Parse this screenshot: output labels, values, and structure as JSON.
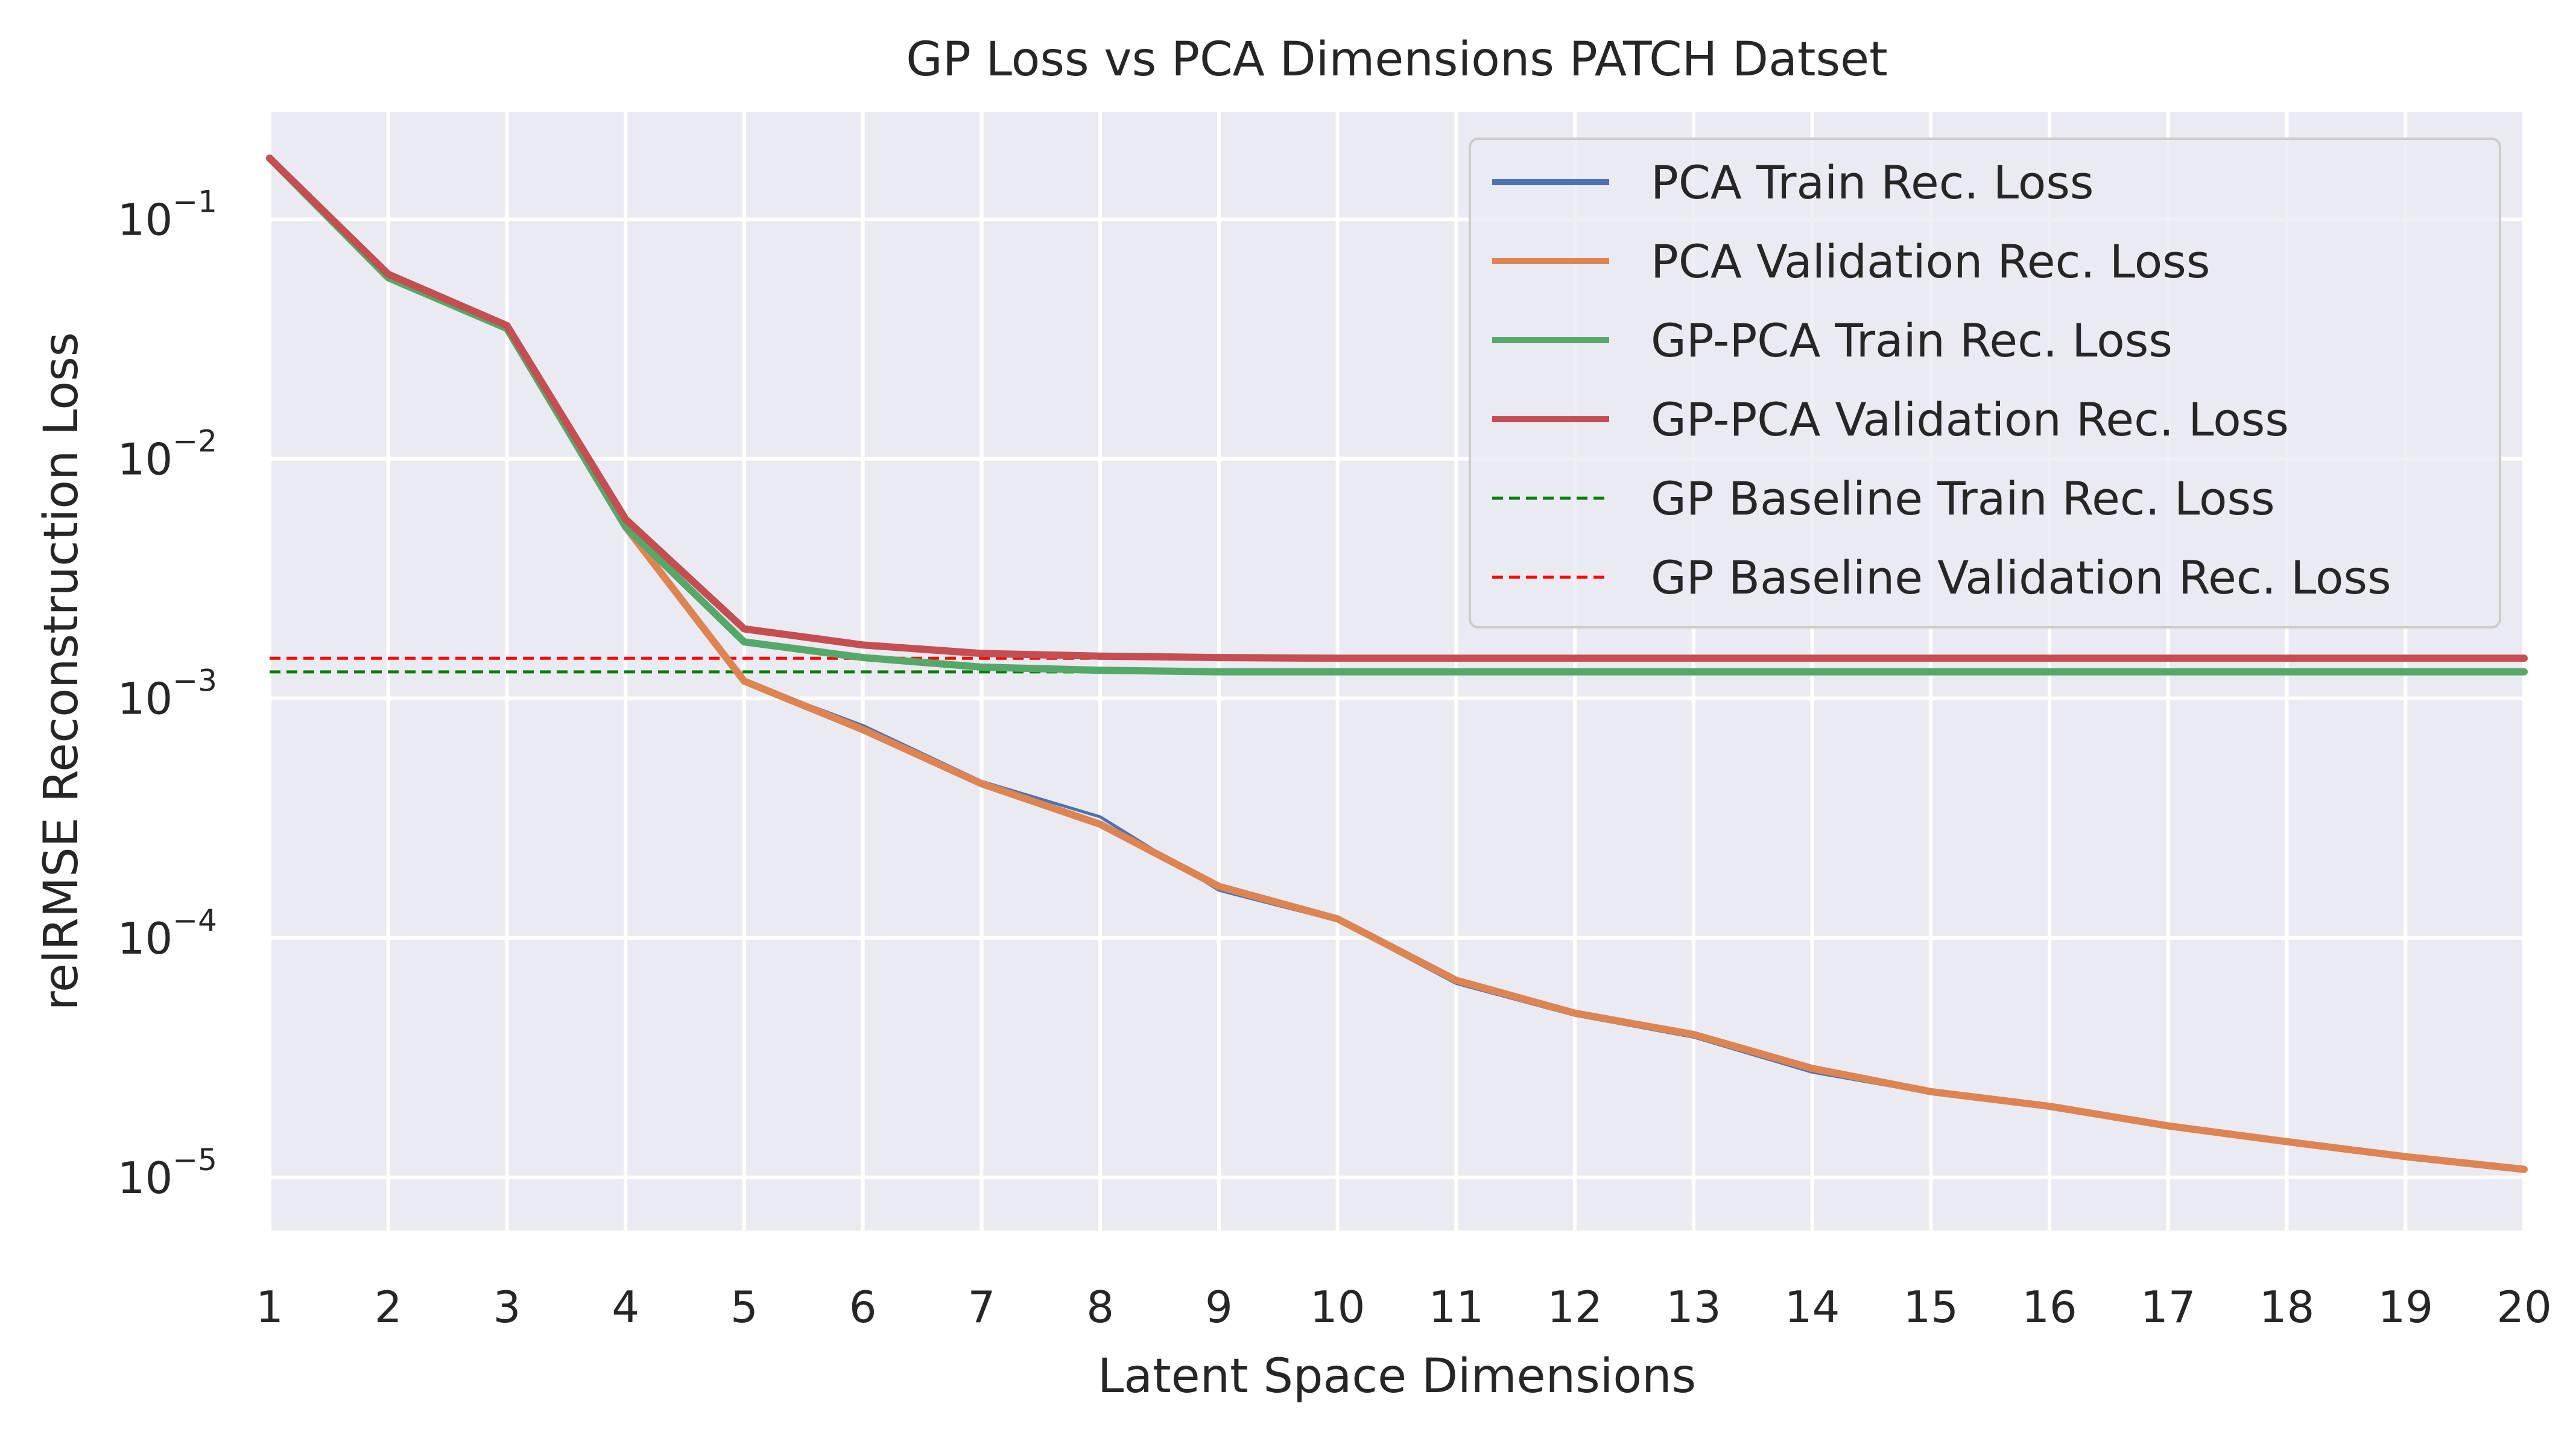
{
  "chart_data": {
    "type": "line",
    "title": "GP Loss vs PCA Dimensions PATCH Datset",
    "xlabel": "Latent Space Dimensions",
    "ylabel": "relRMSE Reconstruction Loss",
    "yscale": "log",
    "xlim": [
      1,
      20
    ],
    "ylim": [
      6e-06,
      0.28
    ],
    "grid": true,
    "legend_position": "top-right",
    "x_ticks": [
      1,
      2,
      3,
      4,
      5,
      6,
      7,
      8,
      9,
      10,
      11,
      12,
      13,
      14,
      15,
      16,
      17,
      18,
      19,
      20
    ],
    "x_tick_labels": [
      "1",
      "2",
      "3",
      "4",
      "5",
      "6",
      "7",
      "8",
      "9",
      "10",
      "11",
      "12",
      "13",
      "14",
      "15",
      "16",
      "17",
      "18",
      "19",
      "20"
    ],
    "y_ticks": [
      {
        "value": 0.1,
        "base": "10",
        "exp": "−1"
      },
      {
        "value": 0.01,
        "base": "10",
        "exp": "−2"
      },
      {
        "value": 0.001,
        "base": "10",
        "exp": "−3"
      },
      {
        "value": 0.0001,
        "base": "10",
        "exp": "−4"
      },
      {
        "value": 1e-05,
        "base": "10",
        "exp": "−5"
      }
    ],
    "x": [
      1,
      2,
      3,
      4,
      5,
      6,
      7,
      8,
      9,
      10,
      11,
      12,
      13,
      14,
      15,
      16,
      17,
      18,
      19,
      20
    ],
    "series": [
      {
        "name": "PCA Train Rec. Loss",
        "color": "#4c72b0",
        "style": "solid",
        "width": 5,
        "values": [
          0.18,
          0.058,
          0.035,
          0.0052,
          0.00118,
          0.00077,
          0.00045,
          0.00032,
          0.000158,
          0.000118,
          6.45e-05,
          4.75e-05,
          3.85e-05,
          2.75e-05,
          2.25e-05,
          1.97e-05,
          1.62e-05,
          1.41e-05,
          1.21e-05,
          1.08e-05
        ]
      },
      {
        "name": "PCA Validation Rec. Loss",
        "color": "#dd8452",
        "style": "solid",
        "width": 12,
        "values": [
          0.18,
          0.058,
          0.035,
          0.0052,
          0.00118,
          0.00074,
          0.00044,
          0.000298,
          0.000164,
          0.00012,
          6.65e-05,
          4.85e-05,
          3.95e-05,
          2.85e-05,
          2.28e-05,
          1.98e-05,
          1.64e-05,
          1.41e-05,
          1.22e-05,
          1.08e-05
        ]
      },
      {
        "name": "GP-PCA Train Rec. Loss",
        "color": "#55a868",
        "style": "solid",
        "width": 12,
        "values": [
          0.18,
          0.057,
          0.035,
          0.0052,
          0.00172,
          0.00148,
          0.00135,
          0.00131,
          0.00129,
          0.00129,
          0.00129,
          0.00129,
          0.00129,
          0.00129,
          0.00129,
          0.00129,
          0.00129,
          0.00129,
          0.00129,
          0.00129
        ]
      },
      {
        "name": "GP-PCA Validation Rec. Loss",
        "color": "#c44e52",
        "style": "solid",
        "width": 12,
        "values": [
          0.18,
          0.059,
          0.036,
          0.0056,
          0.00195,
          0.00167,
          0.00154,
          0.0015,
          0.00148,
          0.00147,
          0.00147,
          0.00147,
          0.00147,
          0.00147,
          0.00147,
          0.00147,
          0.00147,
          0.00147,
          0.00147,
          0.00147
        ]
      },
      {
        "name": "GP Baseline Train Rec. Loss",
        "color": "#008000",
        "style": "dashed",
        "width": 5,
        "constant": 0.00129
      },
      {
        "name": "GP Baseline Validation Rec. Loss",
        "color": "#ff0000",
        "style": "dashed",
        "width": 5,
        "constant": 0.00147
      }
    ]
  }
}
